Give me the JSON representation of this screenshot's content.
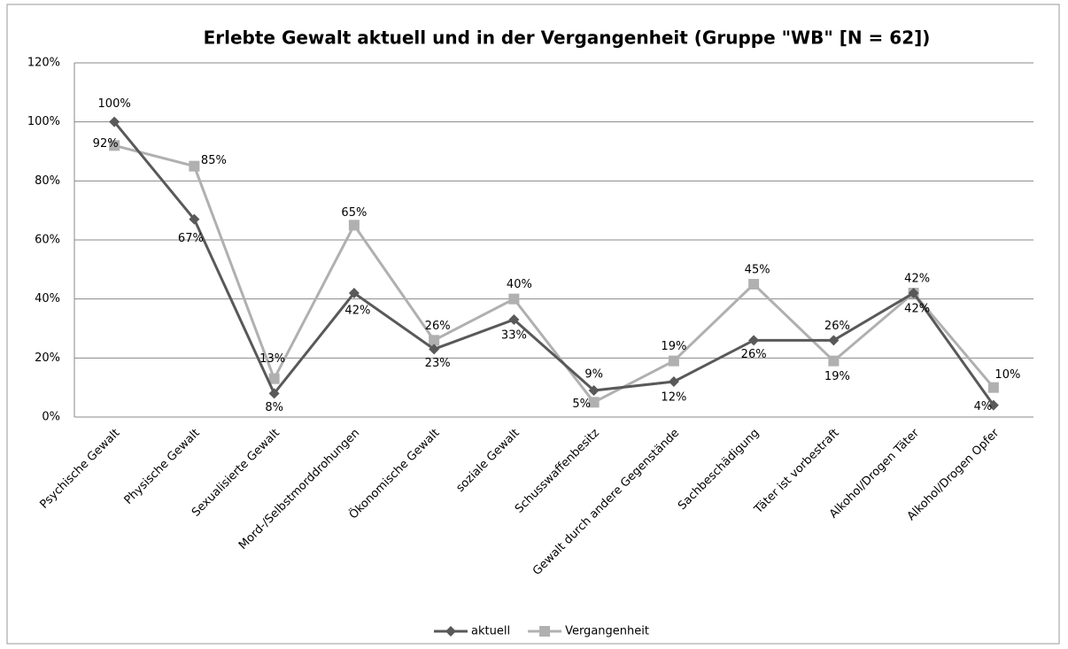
{
  "chart_data": {
    "type": "line",
    "title": "Erlebte Gewalt aktuell und in der Vergangenheit (Gruppe \"WB\" [N = 62])",
    "categories": [
      "Psychische Gewalt",
      "Physische Gewalt",
      "Sexualisierte Gewalt",
      "Mord-/Selbstmorddrohungen",
      "Ökonomische Gewalt",
      "soziale Gewalt",
      "Schusswaffenbesitz",
      "Gewalt durch andere Gegenstände",
      "Sachbeschädigung",
      "Täter ist vorbestraft",
      "Alkohol/Drogen Täter",
      "Alkohol/Drogen Opfer"
    ],
    "series": [
      {
        "name": "aktuell",
        "color": "#595959",
        "marker": "diamond",
        "values": [
          100,
          67,
          8,
          42,
          23,
          33,
          9,
          12,
          26,
          26,
          42,
          4
        ],
        "value_labels": [
          "100%",
          "67%",
          "8%",
          "42%",
          "23%",
          "33%",
          "9%",
          "12%",
          "26%",
          "26%",
          "42%",
          "4%"
        ]
      },
      {
        "name": "Vergangenheit",
        "color": "#b0b0b0",
        "marker": "square",
        "values": [
          92,
          85,
          13,
          65,
          26,
          40,
          5,
          19,
          45,
          19,
          42,
          10
        ],
        "value_labels": [
          "92%",
          "85%",
          "13%",
          "65%",
          "26%",
          "40%",
          "5%",
          "19%",
          "45%",
          "19%",
          "42%",
          "10%"
        ]
      }
    ],
    "ylim": [
      0,
      120
    ],
    "yticks": [
      {
        "value": 0,
        "label": "0%"
      },
      {
        "value": 20,
        "label": "20%"
      },
      {
        "value": 40,
        "label": "40%"
      },
      {
        "value": 60,
        "label": "60%"
      },
      {
        "value": 80,
        "label": "80%"
      },
      {
        "value": 100,
        "label": "100%"
      },
      {
        "value": 120,
        "label": "120%"
      }
    ],
    "grid": true,
    "legend": "bottom"
  }
}
